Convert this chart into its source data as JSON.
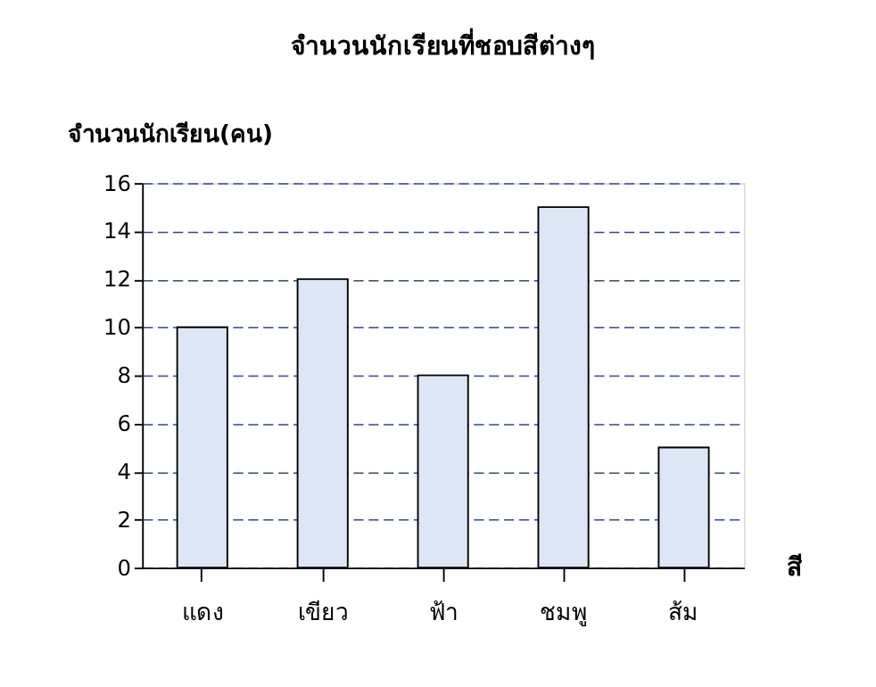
{
  "chart_data": {
    "type": "bar",
    "title": "จำนวนนักเรียนที่ชอบสีต่างๆ",
    "xlabel": "สี",
    "ylabel": "จำนวนนักเรียน(คน)",
    "categories": [
      "แดง",
      "เขียว",
      "ฟ้า",
      "ชมพู",
      "ส้ม"
    ],
    "values": [
      10,
      12,
      8,
      15,
      5
    ],
    "color": "#dde6f5",
    "ylim": [
      0,
      16
    ],
    "yticks": [
      0,
      2,
      4,
      6,
      8,
      10,
      12,
      14,
      16
    ],
    "grid": "y",
    "line_style": "dashed"
  }
}
